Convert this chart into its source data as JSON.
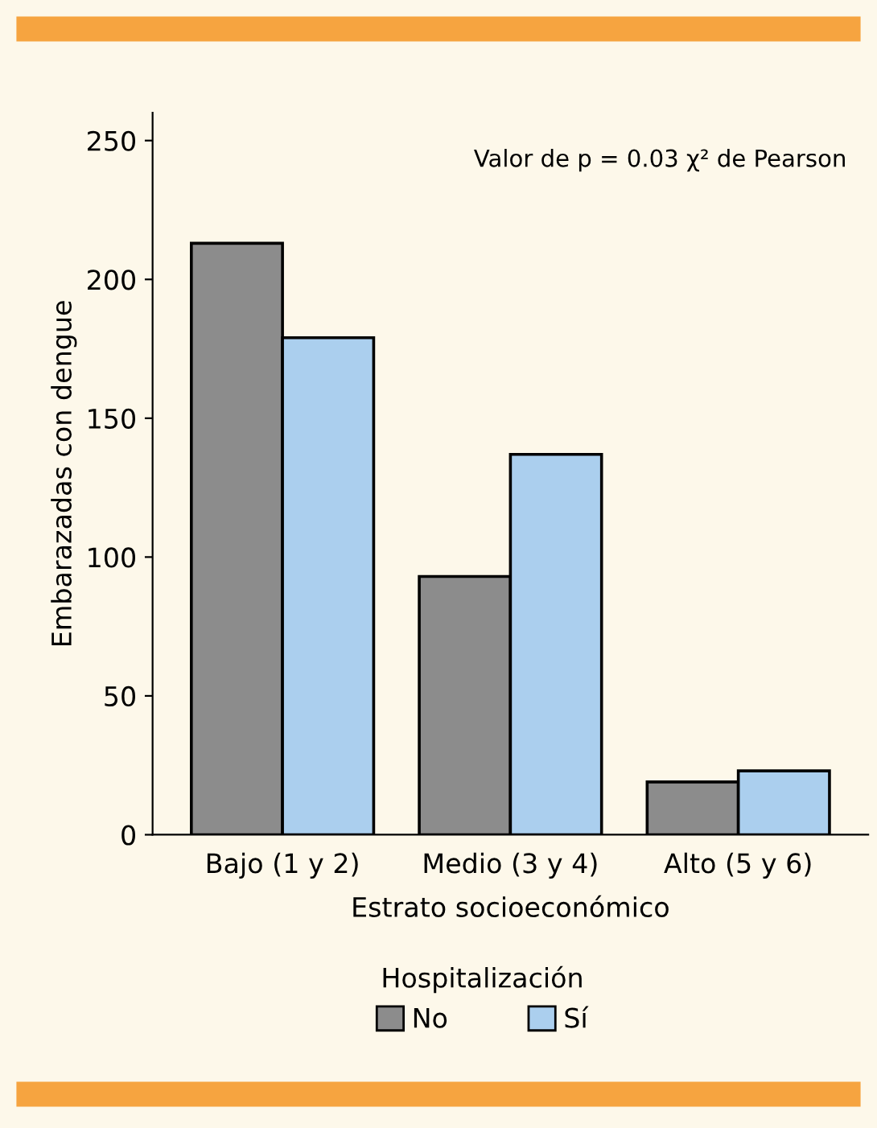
{
  "chart_data": {
    "type": "bar",
    "categories": [
      "Bajo (1 y 2)",
      "Medio (3 y 4)",
      "Alto (5 y 6)"
    ],
    "series": [
      {
        "name": "No",
        "color": "#8c8c8c",
        "values": [
          213,
          93,
          19
        ]
      },
      {
        "name": "Sí",
        "color": "#abcfee",
        "values": [
          179,
          137,
          23
        ]
      }
    ],
    "xlabel": "Estrato socioeconómico",
    "ylabel": "Embarazadas con dengue",
    "legend_title": "Hospitalización",
    "legend": "bottom",
    "annotations": [
      "Valor de p = 0.03 χ² de Pearson"
    ],
    "ylim": [
      0,
      260
    ],
    "yticks": [
      0,
      50,
      100,
      150,
      200,
      250
    ],
    "grid": false
  }
}
